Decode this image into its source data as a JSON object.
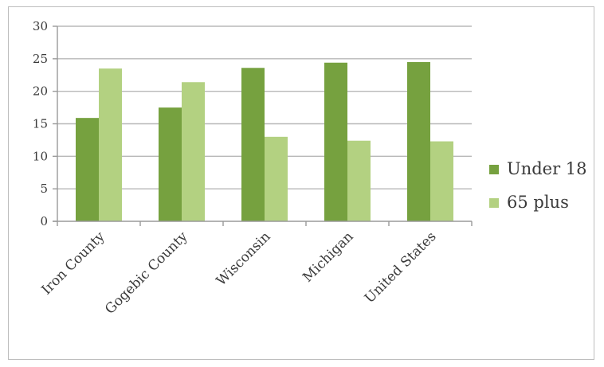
{
  "chart_data": {
    "type": "bar",
    "categories": [
      "Iron County",
      "Gogebic County",
      "Wisconsin",
      "Michigan",
      "United States"
    ],
    "series": [
      {
        "name": "Under 18",
        "color": "#76a13f",
        "values": [
          15.9,
          17.5,
          23.6,
          24.4,
          24.5
        ]
      },
      {
        "name": "65 plus",
        "color": "#b3d181",
        "values": [
          23.5,
          21.4,
          13.0,
          12.4,
          12.3
        ]
      }
    ],
    "yticks": [
      0,
      5,
      10,
      15,
      20,
      25,
      30
    ],
    "ylim": [
      0,
      30
    ],
    "grid": true,
    "legend_position": "right"
  }
}
